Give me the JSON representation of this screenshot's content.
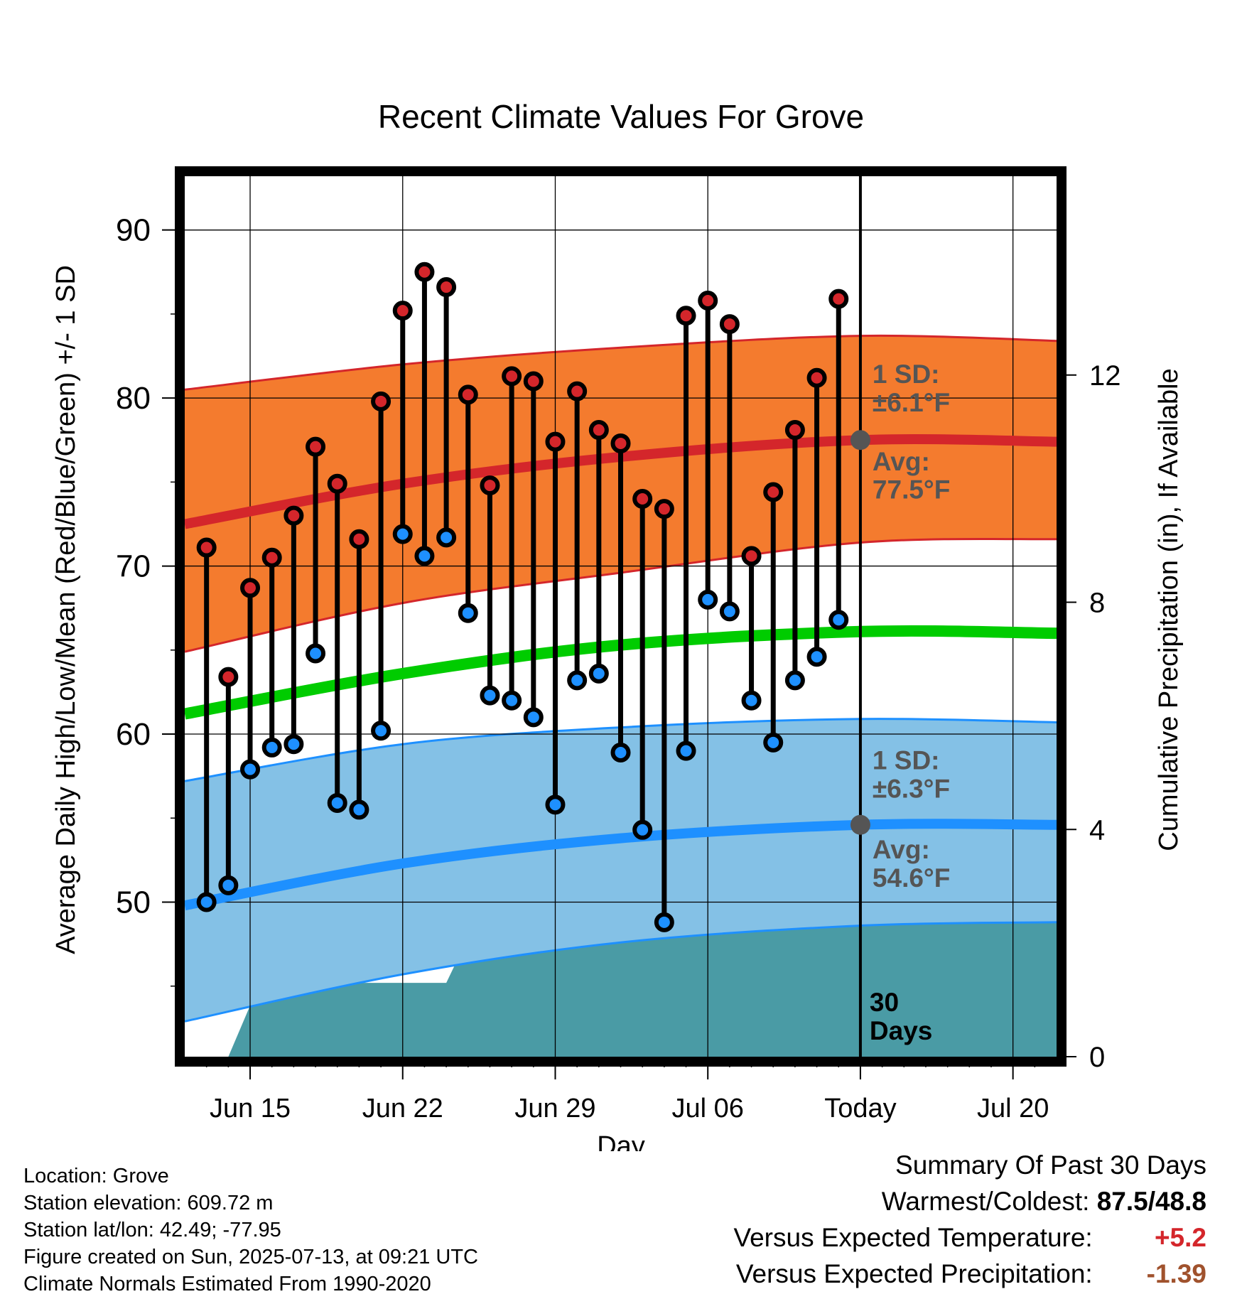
{
  "title": "Recent Climate Values For Grove",
  "colors": {
    "high_band": "#f47b2e",
    "high_band_edge": "#d4262b",
    "high_avg": "#d4262b",
    "low_band": "#84c1e6",
    "low_band_edge": "#1e90ff",
    "low_avg": "#1e90ff",
    "mean_line": "#00cc00",
    "precip_fill": "#4a9ba5",
    "high_marker": "#d4262b",
    "low_marker": "#1e90ff",
    "avg_marker": "#555555",
    "annotation": "#555555",
    "positive_anomaly": "#d4262b",
    "precip_anomaly": "#a0522d"
  },
  "chart_data": {
    "type": "line",
    "title": "Recent Climate Values For Grove",
    "xlabel": "Day",
    "ylabel": "Average Daily High/Low/Mean (Red/Blue/Green) +/- 1 SD",
    "y2label": "Cumulative Precipitation (in), If Available",
    "x_range": [
      "2025-06-12",
      "2025-07-22"
    ],
    "x_ticks": [
      {
        "date": "2025-06-15",
        "label": "Jun 15"
      },
      {
        "date": "2025-06-22",
        "label": "Jun 22"
      },
      {
        "date": "2025-06-29",
        "label": "Jun 29"
      },
      {
        "date": "2025-07-06",
        "label": "Jul 06"
      },
      {
        "date": "2025-07-13",
        "label": "Today"
      },
      {
        "date": "2025-07-20",
        "label": "Jul 20"
      }
    ],
    "ylim": [
      40.8,
      93.2
    ],
    "y_ticks": [
      90,
      80,
      70,
      60,
      50
    ],
    "y2lim": [
      0,
      15.5
    ],
    "y2_ticks": [
      12,
      8,
      4,
      0
    ],
    "grid": true,
    "today": "2025-07-13",
    "today_label": "30\nDays",
    "normals": {
      "dates": [
        "2025-06-12",
        "2025-06-22",
        "2025-07-02",
        "2025-07-13",
        "2025-07-22"
      ],
      "high_upper": [
        80.5,
        82.0,
        83.0,
        83.7,
        83.4
      ],
      "high_avg": [
        72.5,
        74.9,
        76.5,
        77.5,
        77.4
      ],
      "high_lower": [
        64.9,
        67.8,
        69.6,
        71.4,
        71.6
      ],
      "mean_avg": [
        61.2,
        63.6,
        65.3,
        66.1,
        66.0
      ],
      "low_upper": [
        57.2,
        59.4,
        60.4,
        60.9,
        60.7
      ],
      "low_avg": [
        49.8,
        52.3,
        53.8,
        54.6,
        54.6
      ],
      "low_lower": [
        42.9,
        45.7,
        47.6,
        48.6,
        48.8
      ]
    },
    "annotations": {
      "high_sd": "1 SD:\n±6.1°F",
      "high_avg": "Avg:\n77.5°F",
      "low_sd": "1 SD:\n±6.3°F",
      "low_avg": "Avg:\n54.6°F",
      "high_avg_value": 77.5,
      "low_avg_value": 54.6
    },
    "series": [
      {
        "name": "High",
        "color": "#d4262b",
        "values": [
          71.1,
          63.4,
          68.7,
          70.5,
          73.0,
          77.1,
          74.9,
          71.6,
          79.8,
          85.2,
          87.5,
          86.6,
          80.2,
          74.8,
          81.3,
          81.0,
          77.4,
          80.4,
          78.1,
          77.3,
          74.0,
          73.4,
          84.9,
          85.8,
          84.4,
          70.6,
          74.4,
          78.1,
          81.2,
          85.9
        ]
      },
      {
        "name": "Low",
        "color": "#1e90ff",
        "values": [
          50.0,
          51.0,
          57.9,
          59.2,
          59.4,
          64.8,
          55.9,
          55.5,
          60.2,
          71.9,
          70.6,
          71.7,
          67.2,
          62.3,
          62.0,
          61.0,
          55.8,
          63.2,
          63.6,
          58.9,
          54.3,
          48.8,
          59.0,
          68.0,
          67.3,
          62.0,
          59.5,
          63.2,
          64.6,
          66.8
        ]
      }
    ],
    "obs_dates": [
      "2025-06-13",
      "2025-06-14",
      "2025-06-15",
      "2025-06-16",
      "2025-06-17",
      "2025-06-18",
      "2025-06-19",
      "2025-06-20",
      "2025-06-21",
      "2025-06-22",
      "2025-06-23",
      "2025-06-24",
      "2025-06-25",
      "2025-06-26",
      "2025-06-27",
      "2025-06-28",
      "2025-06-29",
      "2025-06-30",
      "2025-07-01",
      "2025-07-02",
      "2025-07-03",
      "2025-07-04",
      "2025-07-05",
      "2025-07-06",
      "2025-07-07",
      "2025-07-08",
      "2025-07-09",
      "2025-07-10",
      "2025-07-11",
      "2025-07-12"
    ],
    "precip": {
      "dates": [
        "2025-06-14",
        "2025-06-15",
        "2025-06-16",
        "2025-06-18",
        "2025-06-24",
        "2025-06-25",
        "2025-06-27",
        "2025-06-30",
        "2025-07-03",
        "2025-07-05",
        "2025-07-07",
        "2025-07-08",
        "2025-07-09",
        "2025-07-10",
        "2025-07-13",
        "2025-07-22"
      ],
      "values": [
        0.0,
        0.9,
        1.25,
        1.3,
        1.3,
        2.1,
        2.3,
        2.33,
        2.4,
        2.4,
        2.45,
        2.6,
        2.6,
        3.2,
        3.2,
        3.2
      ]
    }
  },
  "labels": {
    "xlabel": "Day",
    "ylabel": "Average Daily High/Low/Mean (Red/Blue/Green) +/- 1 SD",
    "y2label": "Cumulative Precipitation (in), If Available",
    "today_line1": "30",
    "today_line2": "Days"
  },
  "info": {
    "location": "Location: Grove",
    "elevation": "Station elevation: 609.72 m",
    "latlon": "Station lat/lon: 42.49; -77.95",
    "created": "Figure created on Sun, 2025-07-13, at 09:21 UTC",
    "normals": "Climate Normals Estimated From 1990-2020"
  },
  "summary": {
    "title": "Summary Of Past 30 Days",
    "warmest_label": "Warmest/Coldest:",
    "warmest_value": "87.5/48.8",
    "temp_label": "Versus Expected Temperature:",
    "temp_value": "+5.2",
    "precip_label": "Versus Expected Precipitation:",
    "precip_value": "-1.39"
  }
}
